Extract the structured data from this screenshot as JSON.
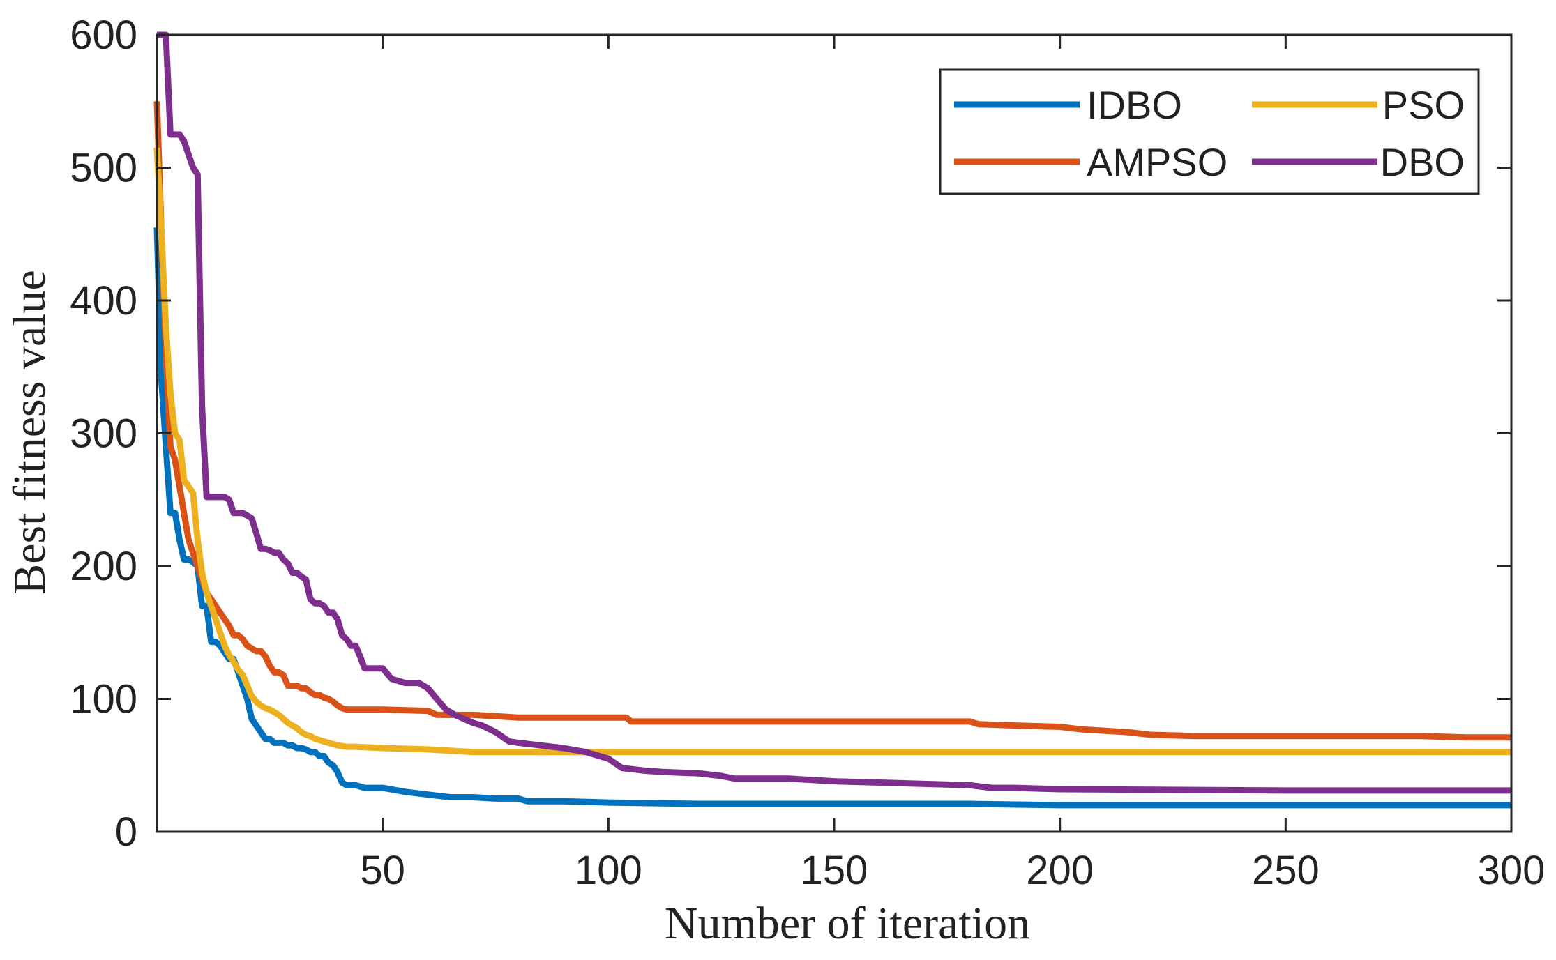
{
  "chart_data": {
    "type": "line",
    "title": "",
    "xlabel": "Number of iteration",
    "ylabel": "Best fitness value",
    "xlim": [
      0,
      300
    ],
    "ylim": [
      0,
      600
    ],
    "xticks": [
      50,
      100,
      150,
      200,
      250,
      300
    ],
    "yticks": [
      0,
      100,
      200,
      300,
      400,
      500,
      600
    ],
    "grid": false,
    "legend_position": "top-right",
    "series": [
      {
        "name": "IDBO",
        "color": "#0072BD",
        "points": [
          [
            0,
            455
          ],
          [
            1,
            340
          ],
          [
            2,
            290
          ],
          [
            3,
            240
          ],
          [
            4,
            240
          ],
          [
            5,
            220
          ],
          [
            6,
            205
          ],
          [
            7,
            205
          ],
          [
            8,
            203
          ],
          [
            9,
            200
          ],
          [
            10,
            170
          ],
          [
            11,
            170
          ],
          [
            12,
            143
          ],
          [
            13,
            143
          ],
          [
            14,
            140
          ],
          [
            15,
            135
          ],
          [
            16,
            130
          ],
          [
            17,
            130
          ],
          [
            18,
            120
          ],
          [
            19,
            110
          ],
          [
            20,
            100
          ],
          [
            21,
            85
          ],
          [
            22,
            80
          ],
          [
            23,
            75
          ],
          [
            24,
            70
          ],
          [
            25,
            70
          ],
          [
            26,
            67
          ],
          [
            27,
            67
          ],
          [
            28,
            67
          ],
          [
            29,
            65
          ],
          [
            30,
            65
          ],
          [
            31,
            63
          ],
          [
            32,
            63
          ],
          [
            33,
            62
          ],
          [
            34,
            60
          ],
          [
            35,
            60
          ],
          [
            36,
            57
          ],
          [
            37,
            57
          ],
          [
            38,
            52
          ],
          [
            39,
            50
          ],
          [
            40,
            45
          ],
          [
            41,
            37
          ],
          [
            42,
            35
          ],
          [
            44,
            35
          ],
          [
            46,
            33
          ],
          [
            50,
            33
          ],
          [
            55,
            30
          ],
          [
            60,
            28
          ],
          [
            65,
            26
          ],
          [
            70,
            26
          ],
          [
            75,
            25
          ],
          [
            80,
            25
          ],
          [
            82,
            23
          ],
          [
            90,
            23
          ],
          [
            100,
            22
          ],
          [
            120,
            21
          ],
          [
            150,
            21
          ],
          [
            180,
            21
          ],
          [
            200,
            20
          ],
          [
            250,
            20
          ],
          [
            300,
            20
          ]
        ]
      },
      {
        "name": "AMPSO",
        "color": "#D95319",
        "points": [
          [
            0,
            550
          ],
          [
            1,
            450
          ],
          [
            2,
            360
          ],
          [
            3,
            290
          ],
          [
            4,
            280
          ],
          [
            5,
            260
          ],
          [
            6,
            240
          ],
          [
            7,
            220
          ],
          [
            8,
            210
          ],
          [
            9,
            200
          ],
          [
            10,
            190
          ],
          [
            11,
            180
          ],
          [
            12,
            175
          ],
          [
            13,
            170
          ],
          [
            14,
            165
          ],
          [
            15,
            160
          ],
          [
            16,
            155
          ],
          [
            17,
            148
          ],
          [
            18,
            148
          ],
          [
            19,
            145
          ],
          [
            20,
            140
          ],
          [
            21,
            138
          ],
          [
            22,
            136
          ],
          [
            23,
            136
          ],
          [
            24,
            132
          ],
          [
            25,
            125
          ],
          [
            26,
            120
          ],
          [
            27,
            120
          ],
          [
            28,
            118
          ],
          [
            29,
            110
          ],
          [
            30,
            110
          ],
          [
            31,
            110
          ],
          [
            32,
            108
          ],
          [
            33,
            108
          ],
          [
            34,
            105
          ],
          [
            35,
            103
          ],
          [
            36,
            103
          ],
          [
            37,
            101
          ],
          [
            38,
            100
          ],
          [
            39,
            98
          ],
          [
            40,
            95
          ],
          [
            41,
            93
          ],
          [
            42,
            92
          ],
          [
            44,
            92
          ],
          [
            50,
            92
          ],
          [
            60,
            91
          ],
          [
            62,
            88
          ],
          [
            70,
            88
          ],
          [
            75,
            87
          ],
          [
            80,
            86
          ],
          [
            90,
            86
          ],
          [
            100,
            86
          ],
          [
            104,
            86
          ],
          [
            105,
            83
          ],
          [
            120,
            83
          ],
          [
            150,
            83
          ],
          [
            180,
            83
          ],
          [
            182,
            81
          ],
          [
            190,
            80
          ],
          [
            200,
            79
          ],
          [
            205,
            77
          ],
          [
            210,
            76
          ],
          [
            215,
            75
          ],
          [
            220,
            73
          ],
          [
            230,
            72
          ],
          [
            250,
            72
          ],
          [
            280,
            72
          ],
          [
            290,
            71
          ],
          [
            300,
            71
          ]
        ]
      },
      {
        "name": "PSO",
        "color": "#EDB120",
        "points": [
          [
            0,
            515
          ],
          [
            1,
            450
          ],
          [
            2,
            380
          ],
          [
            3,
            330
          ],
          [
            4,
            300
          ],
          [
            5,
            295
          ],
          [
            6,
            265
          ],
          [
            7,
            260
          ],
          [
            8,
            255
          ],
          [
            9,
            220
          ],
          [
            10,
            195
          ],
          [
            11,
            180
          ],
          [
            12,
            170
          ],
          [
            13,
            160
          ],
          [
            14,
            150
          ],
          [
            15,
            140
          ],
          [
            16,
            133
          ],
          [
            17,
            128
          ],
          [
            18,
            122
          ],
          [
            19,
            118
          ],
          [
            20,
            110
          ],
          [
            21,
            102
          ],
          [
            22,
            98
          ],
          [
            23,
            95
          ],
          [
            24,
            93
          ],
          [
            25,
            92
          ],
          [
            26,
            90
          ],
          [
            27,
            88
          ],
          [
            28,
            85
          ],
          [
            29,
            82
          ],
          [
            30,
            80
          ],
          [
            31,
            78
          ],
          [
            32,
            75
          ],
          [
            33,
            73
          ],
          [
            34,
            72
          ],
          [
            35,
            70
          ],
          [
            36,
            69
          ],
          [
            37,
            68
          ],
          [
            38,
            67
          ],
          [
            39,
            66
          ],
          [
            40,
            65
          ],
          [
            42,
            64
          ],
          [
            44,
            64
          ],
          [
            50,
            63
          ],
          [
            60,
            62
          ],
          [
            65,
            61
          ],
          [
            70,
            60
          ],
          [
            80,
            60
          ],
          [
            100,
            60
          ],
          [
            150,
            60
          ],
          [
            200,
            60
          ],
          [
            250,
            60
          ],
          [
            300,
            60
          ]
        ]
      },
      {
        "name": "DBO",
        "color": "#7E2F8E",
        "points": [
          [
            0,
            600
          ],
          [
            1,
            600
          ],
          [
            2,
            600
          ],
          [
            3,
            525
          ],
          [
            4,
            525
          ],
          [
            5,
            525
          ],
          [
            6,
            520
          ],
          [
            7,
            510
          ],
          [
            8,
            500
          ],
          [
            9,
            495
          ],
          [
            10,
            320
          ],
          [
            11,
            252
          ],
          [
            12,
            252
          ],
          [
            13,
            252
          ],
          [
            14,
            252
          ],
          [
            15,
            252
          ],
          [
            16,
            250
          ],
          [
            17,
            240
          ],
          [
            18,
            240
          ],
          [
            19,
            240
          ],
          [
            20,
            238
          ],
          [
            21,
            236
          ],
          [
            22,
            225
          ],
          [
            23,
            213
          ],
          [
            24,
            213
          ],
          [
            25,
            212
          ],
          [
            26,
            210
          ],
          [
            27,
            210
          ],
          [
            28,
            205
          ],
          [
            29,
            202
          ],
          [
            30,
            195
          ],
          [
            31,
            195
          ],
          [
            32,
            192
          ],
          [
            33,
            190
          ],
          [
            34,
            175
          ],
          [
            35,
            172
          ],
          [
            36,
            172
          ],
          [
            37,
            170
          ],
          [
            38,
            165
          ],
          [
            39,
            165
          ],
          [
            40,
            160
          ],
          [
            41,
            148
          ],
          [
            42,
            145
          ],
          [
            43,
            140
          ],
          [
            44,
            140
          ],
          [
            45,
            132
          ],
          [
            46,
            123
          ],
          [
            47,
            123
          ],
          [
            48,
            123
          ],
          [
            50,
            123
          ],
          [
            52,
            115
          ],
          [
            55,
            112
          ],
          [
            58,
            112
          ],
          [
            60,
            108
          ],
          [
            62,
            100
          ],
          [
            64,
            92
          ],
          [
            66,
            88
          ],
          [
            68,
            85
          ],
          [
            70,
            82
          ],
          [
            72,
            80
          ],
          [
            75,
            75
          ],
          [
            78,
            68
          ],
          [
            80,
            67
          ],
          [
            85,
            65
          ],
          [
            90,
            63
          ],
          [
            95,
            60
          ],
          [
            100,
            55
          ],
          [
            103,
            48
          ],
          [
            108,
            46
          ],
          [
            112,
            45
          ],
          [
            120,
            44
          ],
          [
            125,
            42
          ],
          [
            128,
            40
          ],
          [
            140,
            40
          ],
          [
            150,
            38
          ],
          [
            160,
            37
          ],
          [
            170,
            36
          ],
          [
            180,
            35
          ],
          [
            185,
            33
          ],
          [
            190,
            33
          ],
          [
            200,
            32
          ],
          [
            250,
            31
          ],
          [
            300,
            31
          ]
        ]
      }
    ]
  }
}
